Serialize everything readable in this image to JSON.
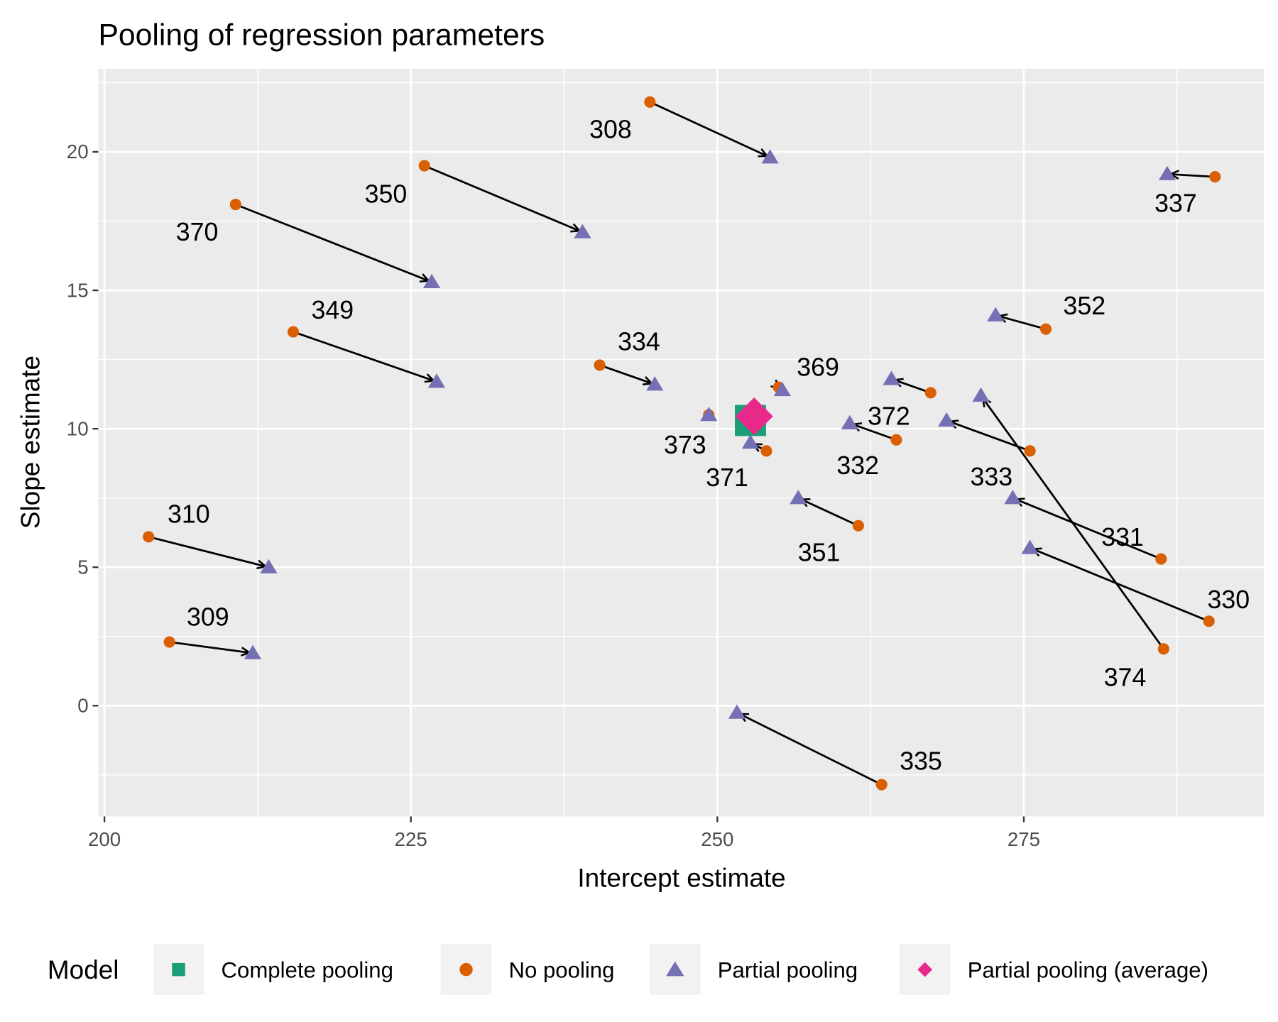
{
  "chart_data": {
    "type": "scatter",
    "title": "Pooling of regression parameters",
    "xlabel": "Intercept estimate",
    "ylabel": "Slope estimate",
    "xlim": [
      199.5,
      294.6
    ],
    "ylim": [
      -4.0,
      23.0
    ],
    "x_ticks": [
      200,
      225,
      250,
      275
    ],
    "y_ticks": [
      0,
      5,
      10,
      15,
      20
    ],
    "grid": true,
    "legend": {
      "title": "Model",
      "placement": "bottom",
      "entries": [
        {
          "label": "Complete pooling",
          "color": "#1B9E77",
          "shape": "square"
        },
        {
          "label": "No pooling",
          "color": "#D95F02",
          "shape": "circle"
        },
        {
          "label": "Partial pooling",
          "color": "#7570B3",
          "shape": "triangle"
        },
        {
          "label": "Partial pooling (average)",
          "color": "#E7298A",
          "shape": "diamond"
        }
      ]
    },
    "subjects": [
      {
        "id": "308",
        "no_pooling": [
          244.5,
          21.8
        ],
        "partial_pooling": [
          254.3,
          19.8
        ]
      },
      {
        "id": "350",
        "no_pooling": [
          226.1,
          19.5
        ],
        "partial_pooling": [
          239.0,
          17.1
        ]
      },
      {
        "id": "370",
        "no_pooling": [
          210.7,
          18.1
        ],
        "partial_pooling": [
          226.7,
          15.3
        ]
      },
      {
        "id": "349",
        "no_pooling": [
          215.4,
          13.5
        ],
        "partial_pooling": [
          227.1,
          11.7
        ]
      },
      {
        "id": "334",
        "no_pooling": [
          240.4,
          12.3
        ],
        "partial_pooling": [
          244.9,
          11.6
        ]
      },
      {
        "id": "369",
        "no_pooling": [
          255.0,
          11.5
        ],
        "partial_pooling": [
          255.3,
          11.4
        ]
      },
      {
        "id": "373",
        "no_pooling": [
          249.3,
          10.5
        ],
        "partial_pooling": [
          249.3,
          10.5
        ]
      },
      {
        "id": "371",
        "no_pooling": [
          254.0,
          9.2
        ],
        "partial_pooling": [
          252.7,
          9.5
        ]
      },
      {
        "id": "372",
        "no_pooling": [
          267.4,
          11.3
        ],
        "partial_pooling": [
          264.2,
          11.8
        ]
      },
      {
        "id": "332",
        "no_pooling": [
          264.6,
          9.6
        ],
        "partial_pooling": [
          260.8,
          10.2
        ]
      },
      {
        "id": "333",
        "no_pooling": [
          275.5,
          9.2
        ],
        "partial_pooling": [
          268.7,
          10.3
        ]
      },
      {
        "id": "331",
        "no_pooling": [
          286.2,
          5.3
        ],
        "partial_pooling": [
          274.1,
          7.5
        ]
      },
      {
        "id": "352",
        "no_pooling": [
          276.8,
          13.6
        ],
        "partial_pooling": [
          272.7,
          14.1
        ]
      },
      {
        "id": "337",
        "no_pooling": [
          290.6,
          19.1
        ],
        "partial_pooling": [
          286.7,
          19.2
        ]
      },
      {
        "id": "330",
        "no_pooling": [
          290.1,
          3.05
        ],
        "partial_pooling": [
          275.5,
          5.7
        ]
      },
      {
        "id": "374",
        "no_pooling": [
          286.4,
          2.05
        ],
        "partial_pooling": [
          271.5,
          11.2
        ]
      },
      {
        "id": "351",
        "no_pooling": [
          261.5,
          6.5
        ],
        "partial_pooling": [
          256.6,
          7.5
        ]
      },
      {
        "id": "335",
        "no_pooling": [
          263.4,
          -2.85
        ],
        "partial_pooling": [
          251.6,
          -0.25
        ]
      },
      {
        "id": "310",
        "no_pooling": [
          203.6,
          6.1
        ],
        "partial_pooling": [
          213.4,
          5.0
        ]
      },
      {
        "id": "309",
        "no_pooling": [
          205.3,
          2.3
        ],
        "partial_pooling": [
          212.1,
          1.9
        ]
      }
    ],
    "complete_pooling": [
      252.7,
      10.3
    ],
    "partial_pooling_average": [
      253.0,
      10.45
    ]
  }
}
